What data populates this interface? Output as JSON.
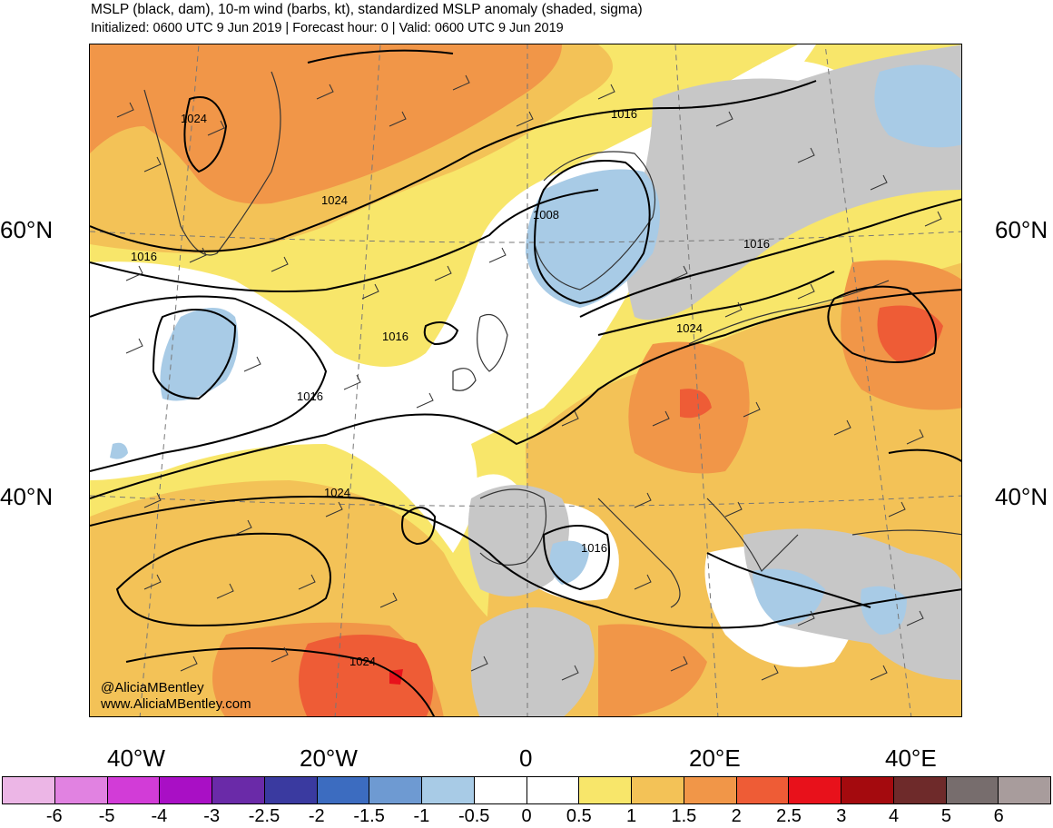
{
  "header": {
    "title": "MSLP (black, dam), 10-m wind (barbs, kt), standardized MSLP anomaly (shaded, sigma)",
    "subtitle": "Initialized: 0600 UTC 9 Jun 2019 | Forecast hour: 0 | Valid: 0600 UTC 9 Jun 2019"
  },
  "map": {
    "lat_labels": [
      "60°N",
      "40°N"
    ],
    "lon_labels": [
      "40°W",
      "20°W",
      "0",
      "20°E",
      "40°E"
    ],
    "isobar_labels": [
      "1024",
      "1016",
      "1024",
      "1008",
      "1016",
      "1016",
      "1016",
      "1024",
      "1024",
      "1016",
      "1016",
      "1024"
    ],
    "credit_handle": "@AliciaMBentley",
    "credit_site": "www.AliciaMBentley.com"
  },
  "colorbar": {
    "colors": [
      "#ecb6e6",
      "#e182e1",
      "#d23cd7",
      "#a90fc5",
      "#6a2aa8",
      "#3a3aa0",
      "#3c6cc0",
      "#6e9ad2",
      "#a8cbe6",
      "#ffffff",
      "#ffffff",
      "#f8e66a",
      "#f3c257",
      "#f19648",
      "#ee5c36",
      "#e8111b",
      "#a40a0e",
      "#6e2a2a",
      "#776d6d",
      "#a89c9c"
    ],
    "ticks": [
      "-6",
      "-5",
      "-4",
      "-3",
      "-2.5",
      "-2",
      "-1.5",
      "-1",
      "-0.5",
      "0",
      "0.5",
      "1",
      "1.5",
      "2",
      "2.5",
      "3",
      "4",
      "5",
      "6"
    ]
  },
  "palette": {
    "gray": "#c7c7c7",
    "blue": "#a8cbe6",
    "white": "#ffffff",
    "yellow": "#f8e66a",
    "lightorange": "#f3c257",
    "orange": "#f19648",
    "red": "#ee5c36",
    "darkred": "#e8111b"
  }
}
